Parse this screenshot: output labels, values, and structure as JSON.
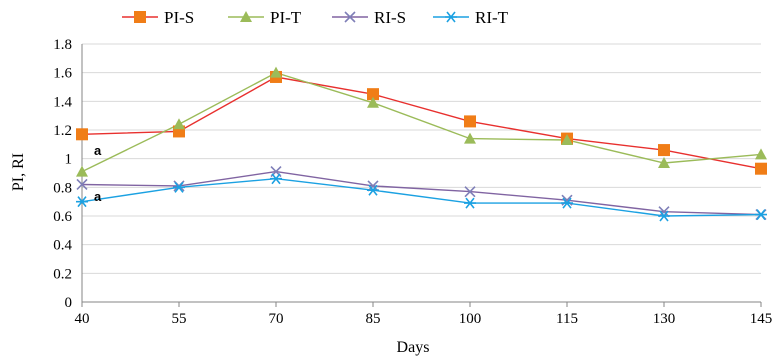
{
  "chart_data": {
    "type": "line",
    "title": "",
    "xlabel": "Days",
    "ylabel": "PI, RI",
    "x": [
      40,
      55,
      70,
      85,
      100,
      115,
      130,
      145
    ],
    "x_tick_labels": [
      "40",
      "55",
      "70",
      "85",
      "100",
      "115",
      "130",
      "145"
    ],
    "ylim": [
      0,
      1.8
    ],
    "y_ticks": [
      0,
      0.2,
      0.4,
      0.6,
      0.8,
      1,
      1.2,
      1.4,
      1.6,
      1.8
    ],
    "y_tick_labels": [
      "0",
      "0.2",
      "0.4",
      "0.6",
      "0.8",
      "1",
      "1.2",
      "1.4",
      "1.6",
      "1.8"
    ],
    "grid": "horizontal",
    "legend_position": "top",
    "series": [
      {
        "name": "PI-S",
        "color": "#e8302e",
        "marker": "square",
        "marker_color": "#f07d17",
        "values": [
          1.17,
          1.19,
          1.57,
          1.45,
          1.26,
          1.14,
          1.06,
          0.93
        ]
      },
      {
        "name": "PI-T",
        "color": "#9bbb59",
        "marker": "triangle",
        "marker_color": "#9bbb59",
        "values": [
          0.91,
          1.24,
          1.6,
          1.39,
          1.14,
          1.13,
          0.97,
          1.03
        ]
      },
      {
        "name": "RI-S",
        "color": "#8064a2",
        "marker": "x",
        "marker_color": "#7f7fb8",
        "values": [
          0.82,
          0.81,
          0.91,
          0.81,
          0.77,
          0.71,
          0.63,
          0.61
        ]
      },
      {
        "name": "RI-T",
        "color": "#1ba1e2",
        "marker": "star",
        "marker_color": "#1ba1e2",
        "values": [
          0.7,
          0.8,
          0.86,
          0.78,
          0.69,
          0.69,
          0.6,
          0.61
        ]
      }
    ],
    "annotations": [
      {
        "text": "a",
        "x": 40,
        "y": 1.06
      },
      {
        "text": "a",
        "x": 40,
        "y": 0.74
      }
    ]
  }
}
